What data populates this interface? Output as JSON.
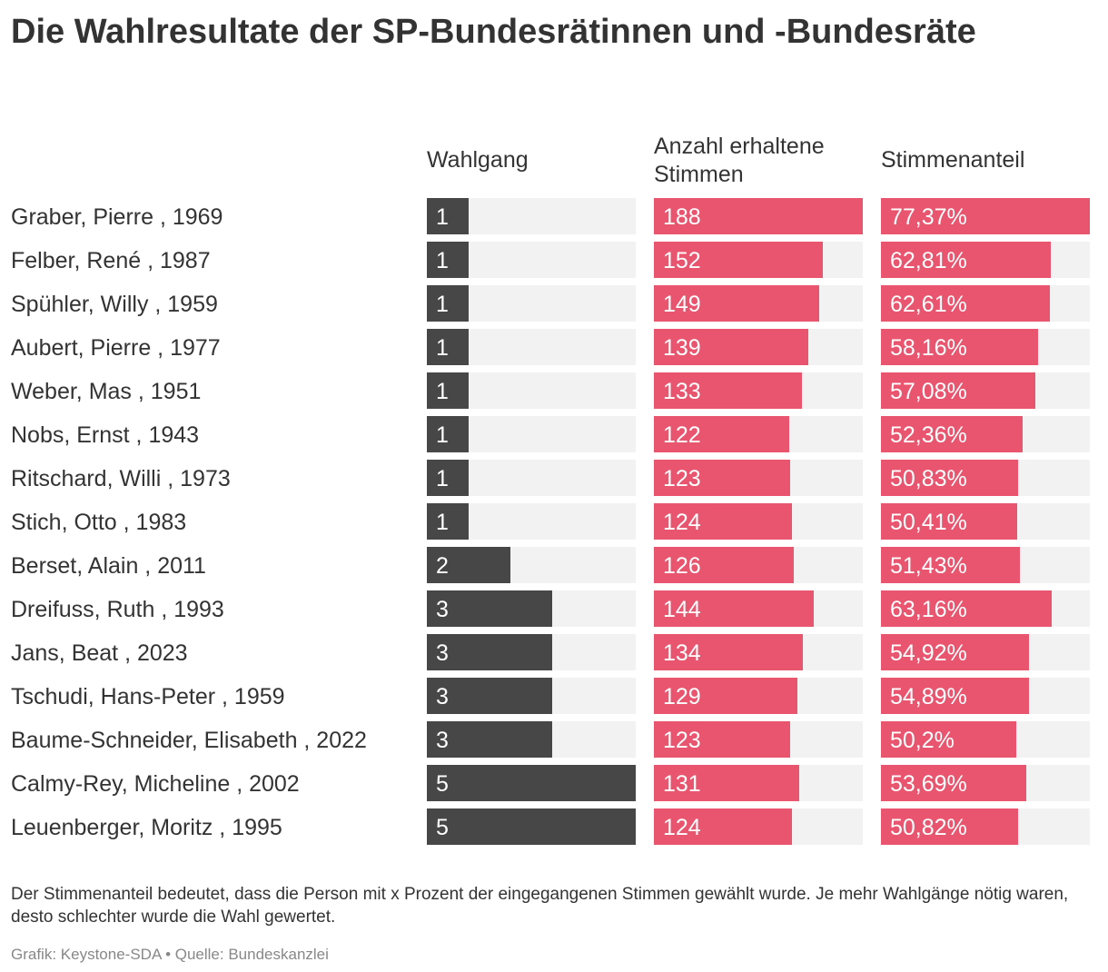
{
  "title": "Die Wahlresultate der SP-Bundesrätinnen und -Bundesräte",
  "columns": {
    "wahlgang": "Wahlgang",
    "stimmen": "Anzahl erhaltene Stimmen",
    "anteil": "Stimmenanteil"
  },
  "colors": {
    "dark": "#474747",
    "red": "#e9546e",
    "track": "#f2f2f2"
  },
  "chart_data": {
    "type": "bar",
    "orientation": "horizontal",
    "categories": [
      "Graber, Pierre , 1969",
      "Felber, René , 1987",
      "Spühler, Willy , 1959",
      "Aubert, Pierre , 1977",
      "Weber, Mas , 1951",
      "Nobs, Ernst , 1943",
      "Ritschard, Willi , 1973",
      "Stich, Otto , 1983",
      "Berset, Alain , 2011",
      "Dreifuss, Ruth , 1993",
      "Jans, Beat , 2023",
      "Tschudi, Hans-Peter , 1959",
      "Baume-Schneider, Elisabeth , 2022",
      "Calmy-Rey, Micheline , 2002",
      "Leuenberger, Moritz , 1995"
    ],
    "series": [
      {
        "name": "Wahlgang",
        "values": [
          1,
          1,
          1,
          1,
          1,
          1,
          1,
          1,
          2,
          3,
          3,
          3,
          3,
          5,
          5
        ],
        "labels": [
          "1",
          "1",
          "1",
          "1",
          "1",
          "1",
          "1",
          "1",
          "2",
          "3",
          "3",
          "3",
          "3",
          "5",
          "5"
        ],
        "max": 5
      },
      {
        "name": "Anzahl erhaltene Stimmen",
        "values": [
          188,
          152,
          149,
          139,
          133,
          122,
          123,
          124,
          126,
          144,
          134,
          129,
          123,
          131,
          124
        ],
        "labels": [
          "188",
          "152",
          "149",
          "139",
          "133",
          "122",
          "123",
          "124",
          "126",
          "144",
          "134",
          "129",
          "123",
          "131",
          "124"
        ],
        "max": 188
      },
      {
        "name": "Stimmenanteil",
        "values": [
          77.37,
          62.81,
          62.61,
          58.16,
          57.08,
          52.36,
          50.83,
          50.41,
          51.43,
          63.16,
          54.92,
          54.89,
          50.2,
          53.69,
          50.82
        ],
        "labels": [
          "77,37%",
          "62,81%",
          "62,61%",
          "58,16%",
          "57,08%",
          "52,36%",
          "50,83%",
          "50,41%",
          "51,43%",
          "63,16%",
          "54,92%",
          "54,89%",
          "50,2%",
          "53,69%",
          "50,82%"
        ],
        "max": 77.37
      }
    ]
  },
  "note": "Der Stimmenanteil bedeutet, dass die Person mit x Prozent der eingegangenen Stimmen gewählt wurde. Je mehr Wahlgänge nötig waren, desto schlechter wurde die Wahl gewertet.",
  "source": "Grafik: Keystone-SDA • Quelle: Bundeskanzlei"
}
